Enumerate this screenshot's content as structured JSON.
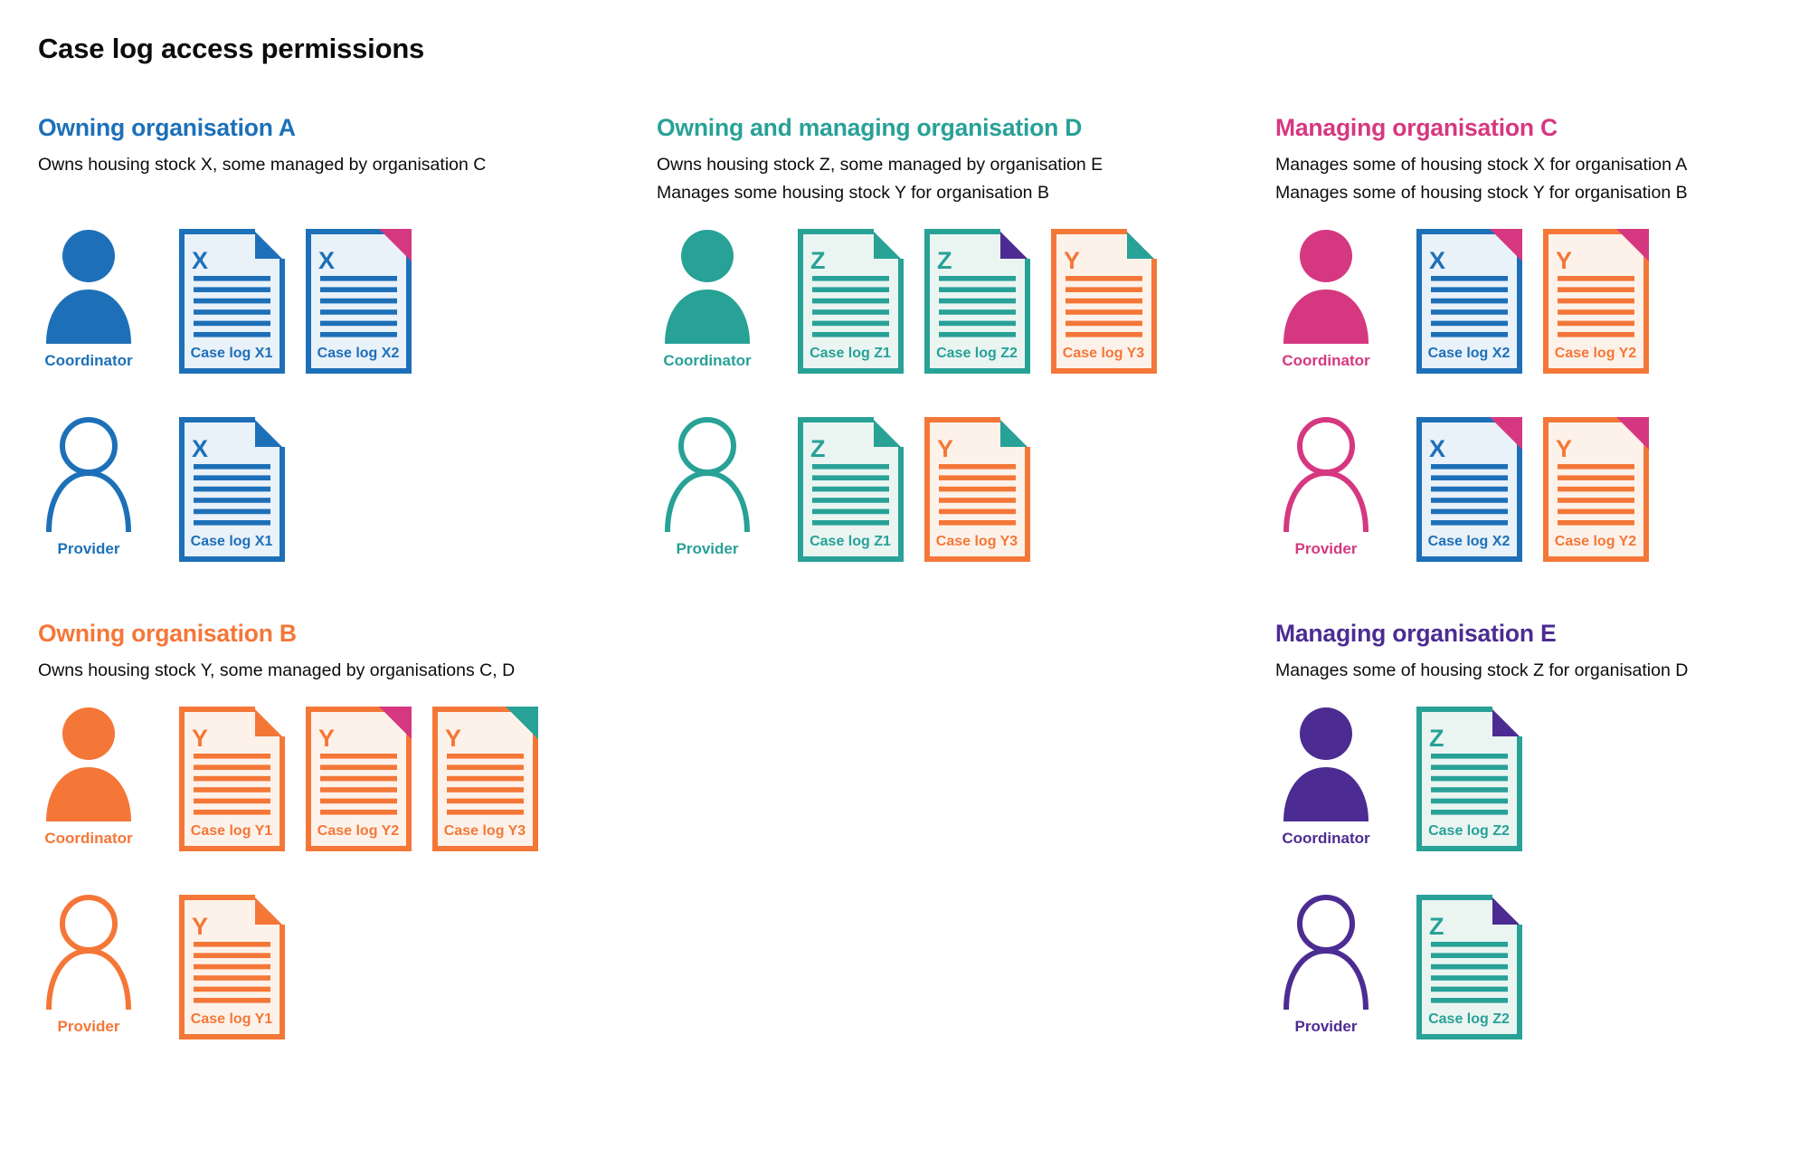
{
  "title": "Case log access permissions",
  "palette": {
    "blue": {
      "main": "#1d70b8",
      "tint": "#e9f1f9"
    },
    "teal": {
      "main": "#28a197",
      "tint": "#eaf5f2"
    },
    "orange": {
      "main": "#f47738",
      "tint": "#fdf2ea"
    },
    "pink": {
      "main": "#d53880"
    },
    "purple": {
      "main": "#4c2c92",
      "tint": "#ece8f4"
    }
  },
  "sections": [
    {
      "id": "owning-organisation-a",
      "band": 1,
      "column": 1,
      "color": "blue",
      "heading": "Owning organisation A",
      "description": [
        "Owns housing stock X, some managed by organisation C"
      ],
      "rows": [
        {
          "role": "Coordinator",
          "person_style": "filled",
          "case_logs": [
            {
              "label": "Case log X1",
              "letter": "X",
              "doc_color": "blue",
              "mark_color": "blue",
              "mark_style": "fold"
            },
            {
              "label": "Case log X2",
              "letter": "X",
              "doc_color": "blue",
              "mark_color": "pink",
              "mark_style": "corner"
            }
          ]
        },
        {
          "role": "Provider",
          "person_style": "outline",
          "case_logs": [
            {
              "label": "Case log X1",
              "letter": "X",
              "doc_color": "blue",
              "mark_color": "blue",
              "mark_style": "fold"
            }
          ]
        }
      ]
    },
    {
      "id": "owning-and-managing-organisation-d",
      "band": 1,
      "column": 2,
      "color": "teal",
      "heading": "Owning and managing organisation D",
      "description": [
        "Owns housing stock Z, some managed by organisation E",
        "Manages some housing stock Y for organisation B"
      ],
      "rows": [
        {
          "role": "Coordinator",
          "person_style": "filled",
          "case_logs": [
            {
              "label": "Case log Z1",
              "letter": "Z",
              "doc_color": "teal",
              "mark_color": "teal",
              "mark_style": "fold"
            },
            {
              "label": "Case log Z2",
              "letter": "Z",
              "doc_color": "teal",
              "mark_color": "purple",
              "mark_style": "fold"
            },
            {
              "label": "Case log Y3",
              "letter": "Y",
              "doc_color": "orange",
              "mark_color": "teal",
              "mark_style": "fold"
            }
          ]
        },
        {
          "role": "Provider",
          "person_style": "outline",
          "case_logs": [
            {
              "label": "Case log Z1",
              "letter": "Z",
              "doc_color": "teal",
              "mark_color": "teal",
              "mark_style": "fold"
            },
            {
              "label": "Case log Y3",
              "letter": "Y",
              "doc_color": "orange",
              "mark_color": "teal",
              "mark_style": "fold"
            }
          ]
        }
      ]
    },
    {
      "id": "managing-organisation-c",
      "band": 1,
      "column": 3,
      "color": "pink",
      "heading": "Managing organisation C",
      "description": [
        "Manages some of housing stock X for organisation A",
        "Manages some of housing stock Y for organisation B"
      ],
      "rows": [
        {
          "role": "Coordinator",
          "person_style": "filled",
          "case_logs": [
            {
              "label": "Case log X2",
              "letter": "X",
              "doc_color": "blue",
              "mark_color": "pink",
              "mark_style": "corner"
            },
            {
              "label": "Case log Y2",
              "letter": "Y",
              "doc_color": "orange",
              "mark_color": "pink",
              "mark_style": "corner"
            }
          ]
        },
        {
          "role": "Provider",
          "person_style": "outline",
          "case_logs": [
            {
              "label": "Case log X2",
              "letter": "X",
              "doc_color": "blue",
              "mark_color": "pink",
              "mark_style": "corner"
            },
            {
              "label": "Case log Y2",
              "letter": "Y",
              "doc_color": "orange",
              "mark_color": "pink",
              "mark_style": "corner"
            }
          ]
        }
      ]
    },
    {
      "id": "owning-organisation-b",
      "band": 2,
      "column": 1,
      "color": "orange",
      "heading": "Owning organisation B",
      "description": [
        "Owns housing stock Y, some managed by organisations C, D"
      ],
      "rows": [
        {
          "role": "Coordinator",
          "person_style": "filled",
          "case_logs": [
            {
              "label": "Case log Y1",
              "letter": "Y",
              "doc_color": "orange",
              "mark_color": "orange",
              "mark_style": "fold"
            },
            {
              "label": "Case log Y2",
              "letter": "Y",
              "doc_color": "orange",
              "mark_color": "pink",
              "mark_style": "corner"
            },
            {
              "label": "Case log Y3",
              "letter": "Y",
              "doc_color": "orange",
              "mark_color": "teal",
              "mark_style": "corner"
            }
          ]
        },
        {
          "role": "Provider",
          "person_style": "outline",
          "case_logs": [
            {
              "label": "Case log Y1",
              "letter": "Y",
              "doc_color": "orange",
              "mark_color": "orange",
              "mark_style": "fold"
            }
          ]
        }
      ]
    },
    {
      "id": "managing-organisation-e",
      "band": 2,
      "column": 3,
      "color": "purple",
      "heading": "Managing organisation E",
      "description": [
        "Manages some of housing stock Z for organisation D"
      ],
      "rows": [
        {
          "role": "Coordinator",
          "person_style": "filled",
          "case_logs": [
            {
              "label": "Case log Z2",
              "letter": "Z",
              "doc_color": "teal",
              "mark_color": "purple",
              "mark_style": "fold"
            }
          ]
        },
        {
          "role": "Provider",
          "person_style": "outline",
          "case_logs": [
            {
              "label": "Case log Z2",
              "letter": "Z",
              "doc_color": "teal",
              "mark_color": "purple",
              "mark_style": "fold"
            }
          ]
        }
      ]
    }
  ]
}
